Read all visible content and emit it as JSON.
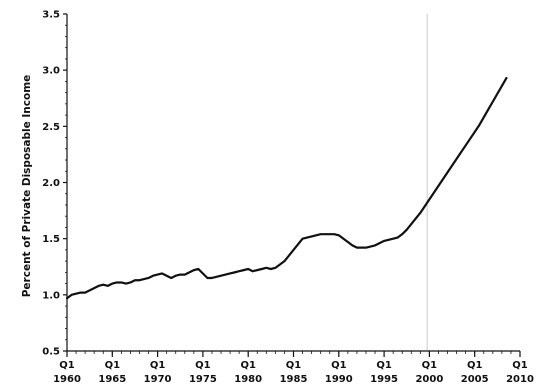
{
  "chart_data": {
    "type": "line",
    "title": "",
    "xlabel": "",
    "ylabel": "Percent of Private Disposable Income",
    "xlim": [
      1960.0,
      2010.0
    ],
    "ylim": [
      0.5,
      3.5
    ],
    "grid": false,
    "legend": "none",
    "line_color": "#111111",
    "reference_line": {
      "x": 1999.75,
      "color": "#bbbbbb"
    },
    "y_ticks": [
      {
        "value": 0.5,
        "label": "0.5"
      },
      {
        "value": 1.0,
        "label": "1.0"
      },
      {
        "value": 1.5,
        "label": "1.5"
      },
      {
        "value": 2.0,
        "label": "2.0"
      },
      {
        "value": 2.5,
        "label": "2.5"
      },
      {
        "value": 3.0,
        "label": "3.0"
      },
      {
        "value": 3.5,
        "label": "3.5"
      }
    ],
    "x_ticks": [
      {
        "value": 1960,
        "quarter": "Q1",
        "year": "1960"
      },
      {
        "value": 1965,
        "quarter": "Q1",
        "year": "1965"
      },
      {
        "value": 1970,
        "quarter": "Q1",
        "year": "1970"
      },
      {
        "value": 1975,
        "quarter": "Q1",
        "year": "1975"
      },
      {
        "value": 1980,
        "quarter": "Q1",
        "year": "1980"
      },
      {
        "value": 1985,
        "quarter": "Q1",
        "year": "1985"
      },
      {
        "value": 1990,
        "quarter": "Q1",
        "year": "1990"
      },
      {
        "value": 1995,
        "quarter": "Q1",
        "year": "1995"
      },
      {
        "value": 2000,
        "quarter": "Q1",
        "year": "2000"
      },
      {
        "value": 2005,
        "quarter": "Q1",
        "year": "2005"
      },
      {
        "value": 2010,
        "quarter": "Q1",
        "year": "2010"
      }
    ],
    "series": [
      {
        "x": [
          1960.0,
          1960.5,
          1961.0,
          1961.5,
          1962.0,
          1962.5,
          1963.0,
          1963.5,
          1964.0,
          1964.5,
          1965.0,
          1965.5,
          1966.0,
          1966.5,
          1967.0,
          1967.5,
          1968.0,
          1968.5,
          1969.0,
          1969.5,
          1970.0,
          1970.5,
          1971.0,
          1971.5,
          1972.0,
          1972.5,
          1973.0,
          1973.5,
          1974.0,
          1974.5,
          1975.0,
          1975.5,
          1976.0,
          1976.5,
          1977.0,
          1977.5,
          1978.0,
          1978.5,
          1979.0,
          1979.5,
          1980.0,
          1980.5,
          1981.0,
          1981.5,
          1982.0,
          1982.5,
          1983.0,
          1983.5,
          1984.0,
          1984.5,
          1985.0,
          1985.5,
          1986.0,
          1986.5,
          1987.0,
          1987.5,
          1988.0,
          1988.5,
          1989.0,
          1989.5,
          1990.0,
          1990.5,
          1991.0,
          1991.5,
          1992.0,
          1992.5,
          1993.0,
          1993.5,
          1994.0,
          1994.5,
          1995.0,
          1995.5,
          1996.0,
          1996.5,
          1997.0,
          1997.5,
          1998.0,
          1998.5,
          1999.0,
          1999.5,
          2000.0,
          2000.5,
          2001.0,
          2001.5,
          2002.0,
          2002.5,
          2003.0,
          2003.5,
          2004.0,
          2004.5,
          2005.0,
          2005.5,
          2006.0,
          2006.5,
          2007.0,
          2007.5,
          2008.0,
          2008.5
        ],
        "values": [
          0.97,
          1.0,
          1.01,
          1.02,
          1.02,
          1.04,
          1.06,
          1.08,
          1.09,
          1.08,
          1.1,
          1.11,
          1.11,
          1.1,
          1.11,
          1.13,
          1.13,
          1.14,
          1.15,
          1.17,
          1.18,
          1.19,
          1.17,
          1.15,
          1.17,
          1.18,
          1.18,
          1.2,
          1.22,
          1.23,
          1.19,
          1.15,
          1.15,
          1.16,
          1.17,
          1.18,
          1.19,
          1.2,
          1.21,
          1.22,
          1.23,
          1.21,
          1.22,
          1.23,
          1.24,
          1.23,
          1.24,
          1.27,
          1.3,
          1.35,
          1.4,
          1.45,
          1.5,
          1.51,
          1.52,
          1.53,
          1.54,
          1.54,
          1.54,
          1.54,
          1.53,
          1.5,
          1.47,
          1.44,
          1.42,
          1.42,
          1.42,
          1.43,
          1.44,
          1.46,
          1.48,
          1.49,
          1.5,
          1.51,
          1.54,
          1.58,
          1.63,
          1.68,
          1.73,
          1.79,
          1.85,
          1.91,
          1.97,
          2.03,
          2.09,
          2.15,
          2.21,
          2.27,
          2.33,
          2.39,
          2.45,
          2.51,
          2.58,
          2.65,
          2.72,
          2.79,
          2.86,
          2.93
        ]
      }
    ]
  }
}
